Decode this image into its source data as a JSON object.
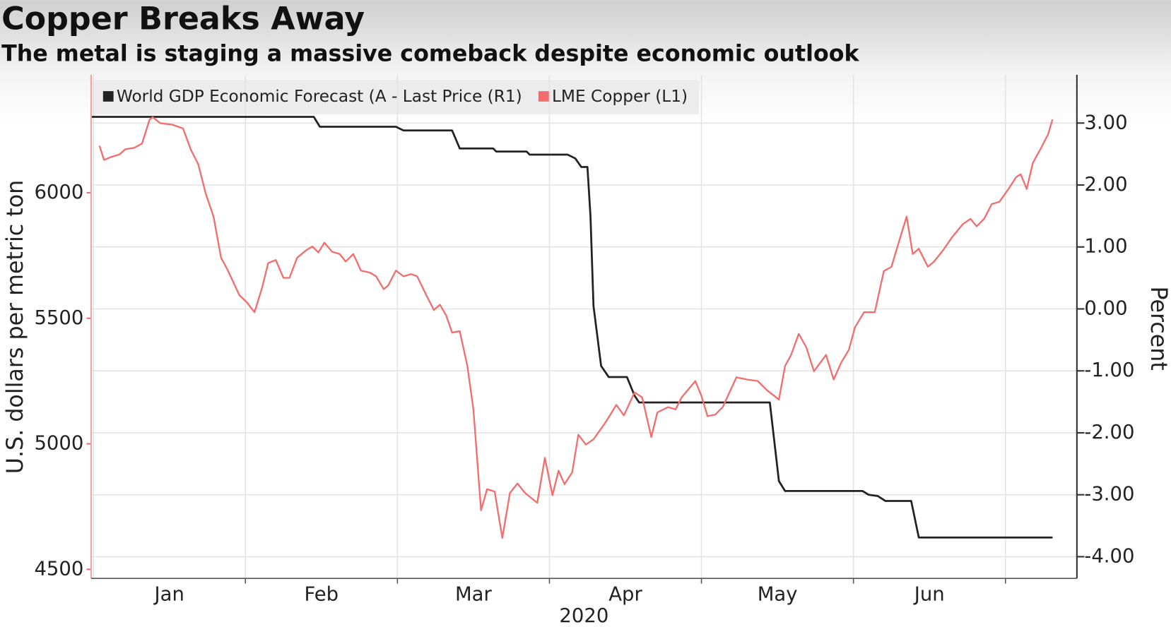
{
  "chart_data": {
    "type": "line",
    "title": "Copper Breaks Away",
    "subtitle": "The metal is staging a massive comeback despite economic outlook",
    "ylabel": "U.S. dollars per metric ton",
    "y2label": "Percent",
    "xlabel": "2020",
    "xlim": [
      -0.015,
      6.47
    ],
    "xticks": [
      {
        "value": 0.5,
        "label": "Jan"
      },
      {
        "value": 1.5,
        "label": "Feb"
      },
      {
        "value": 2.5,
        "label": "Mar"
      },
      {
        "value": 3.5,
        "label": "Apr"
      },
      {
        "value": 4.5,
        "label": "May"
      },
      {
        "value": 5.5,
        "label": "Jun"
      }
    ],
    "ylim": [
      4464,
      6470
    ],
    "yticks": [
      4500,
      5000,
      5500,
      6000
    ],
    "y2lim": [
      -4.35,
      3.78
    ],
    "y2ticks": [
      {
        "value": 3,
        "label": "3.00"
      },
      {
        "value": 2,
        "label": "2.00"
      },
      {
        "value": 1,
        "label": "1.00"
      },
      {
        "value": 0,
        "label": "0.00"
      },
      {
        "value": -1,
        "label": "-1.00"
      },
      {
        "value": -2,
        "label": "-2.00"
      },
      {
        "value": -3,
        "label": "-3.00"
      },
      {
        "value": -4,
        "label": "-4.00"
      }
    ],
    "grid": true,
    "legend": "top-left",
    "series": [
      {
        "name": "World GDP Economic Forecast (A - Last Price (R1)",
        "color": "#222222",
        "axis": "y2",
        "x": [
          -0.01,
          1.45,
          1.49,
          1.99,
          2.04,
          2.36,
          2.41,
          2.63,
          2.65,
          2.85,
          2.87,
          3.12,
          3.17,
          3.21,
          3.25,
          3.27,
          3.29,
          3.34,
          3.39,
          3.51,
          3.56,
          3.59,
          4.45,
          4.51,
          4.55,
          5.06,
          5.1,
          5.16,
          5.21,
          5.38,
          5.43,
          6.31
        ],
        "values": [
          3.1,
          3.1,
          2.94,
          2.94,
          2.88,
          2.88,
          2.59,
          2.59,
          2.54,
          2.54,
          2.49,
          2.49,
          2.43,
          2.29,
          2.29,
          1.49,
          0.05,
          -0.92,
          -1.1,
          -1.1,
          -1.4,
          -1.51,
          -1.51,
          -2.78,
          -2.94,
          -2.94,
          -3.0,
          -3.02,
          -3.1,
          -3.1,
          -3.69,
          -3.69
        ]
      },
      {
        "name": "LME Copper (L1)",
        "color": "#f26d6d",
        "x": [
          0.04,
          0.07,
          0.12,
          0.17,
          0.21,
          0.27,
          0.32,
          0.37,
          0.39,
          0.44,
          0.52,
          0.59,
          0.64,
          0.69,
          0.74,
          0.79,
          0.84,
          0.88,
          0.96,
          1.01,
          1.06,
          1.11,
          1.15,
          1.2,
          1.25,
          1.29,
          1.34,
          1.4,
          1.44,
          1.48,
          1.52,
          1.57,
          1.62,
          1.66,
          1.71,
          1.76,
          1.82,
          1.86,
          1.91,
          1.94,
          1.99,
          2.04,
          2.09,
          2.13,
          2.19,
          2.24,
          2.28,
          2.32,
          2.36,
          2.41,
          2.46,
          2.5,
          2.55,
          2.59,
          2.64,
          2.69,
          2.74,
          2.79,
          2.84,
          2.92,
          2.97,
          3.02,
          3.06,
          3.1,
          3.15,
          3.19,
          3.24,
          3.29,
          3.37,
          3.44,
          3.49,
          3.56,
          3.61,
          3.67,
          3.71,
          3.78,
          3.83,
          3.87,
          3.96,
          4.0,
          4.04,
          4.09,
          4.14,
          4.23,
          4.3,
          4.37,
          4.43,
          4.51,
          4.55,
          4.59,
          4.64,
          4.69,
          4.74,
          4.82,
          4.87,
          4.92,
          4.97,
          5.01,
          5.07,
          5.14,
          5.2,
          5.25,
          5.29,
          5.35,
          5.39,
          5.43,
          5.49,
          5.53,
          5.59,
          5.65,
          5.72,
          5.77,
          5.81,
          5.86,
          5.91,
          5.96,
          6.02,
          6.07,
          6.1,
          6.14,
          6.18,
          6.23,
          6.28,
          6.31
        ],
        "values": [
          6187,
          6131,
          6143,
          6152,
          6173,
          6179,
          6196,
          6292,
          6301,
          6277,
          6271,
          6256,
          6173,
          6113,
          5994,
          5905,
          5741,
          5696,
          5592,
          5563,
          5524,
          5622,
          5720,
          5732,
          5661,
          5661,
          5741,
          5771,
          5786,
          5762,
          5801,
          5765,
          5756,
          5726,
          5756,
          5690,
          5682,
          5667,
          5616,
          5631,
          5690,
          5667,
          5676,
          5667,
          5592,
          5533,
          5554,
          5512,
          5443,
          5449,
          5310,
          5137,
          4735,
          4819,
          4810,
          4625,
          4804,
          4842,
          4804,
          4765,
          4944,
          4795,
          4893,
          4839,
          4887,
          5036,
          4997,
          5018,
          5086,
          5155,
          5113,
          5205,
          5185,
          5027,
          5125,
          5146,
          5137,
          5185,
          5250,
          5191,
          5110,
          5116,
          5146,
          5265,
          5256,
          5250,
          5214,
          5176,
          5310,
          5354,
          5438,
          5384,
          5289,
          5354,
          5256,
          5324,
          5375,
          5464,
          5524,
          5524,
          5688,
          5705,
          5786,
          5905,
          5756,
          5777,
          5705,
          5726,
          5771,
          5824,
          5875,
          5896,
          5866,
          5896,
          5955,
          5964,
          6015,
          6062,
          6074,
          6015,
          6119,
          6173,
          6232,
          6292
        ]
      }
    ]
  }
}
